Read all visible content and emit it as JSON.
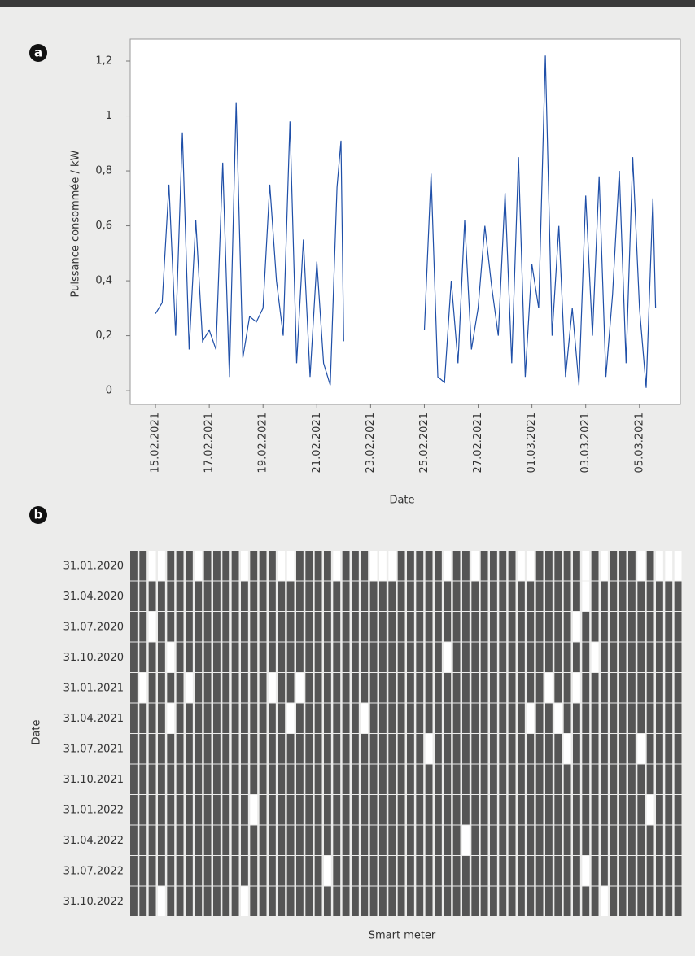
{
  "chart_data": [
    {
      "type": "line",
      "panel": "a",
      "xlabel": "Date",
      "ylabel": "Puissance consommée / kW",
      "color": "#1f4fa8",
      "x": [
        0,
        0.25,
        0.5,
        0.75,
        1,
        1.25,
        1.5,
        1.75,
        2,
        2.25,
        2.5,
        2.75,
        3,
        3.25,
        3.5,
        3.75,
        4,
        4.25,
        4.5,
        4.75,
        5,
        5.25,
        5.5,
        5.75,
        6,
        6.25,
        6.5,
        6.75,
        6.9,
        7.0,
        8.5,
        10,
        10.25,
        10.5,
        10.75,
        11,
        11.25,
        11.5,
        11.75,
        12,
        12.25,
        12.5,
        12.75,
        13,
        13.25,
        13.5,
        13.75,
        14,
        14.25,
        14.5,
        14.75,
        15,
        15.25,
        15.5,
        15.75,
        16,
        16.25,
        16.5,
        16.75,
        17,
        17.25,
        17.5,
        17.75,
        18,
        18.25,
        18.5,
        18.6
      ],
      "values": [
        0.28,
        0.32,
        0.75,
        0.2,
        0.94,
        0.15,
        0.62,
        0.18,
        0.22,
        0.15,
        0.83,
        0.05,
        1.05,
        0.12,
        0.27,
        0.25,
        0.3,
        0.75,
        0.4,
        0.2,
        0.98,
        0.1,
        0.55,
        0.05,
        0.47,
        0.1,
        0.02,
        0.74,
        0.91,
        0.18,
        null,
        0.22,
        0.79,
        0.05,
        0.03,
        0.4,
        0.1,
        0.62,
        0.15,
        0.3,
        0.6,
        0.38,
        0.2,
        0.72,
        0.1,
        0.85,
        0.05,
        0.46,
        0.3,
        1.22,
        0.2,
        0.6,
        0.05,
        0.3,
        0.02,
        0.71,
        0.2,
        0.78,
        0.05,
        0.35,
        0.8,
        0.1,
        0.85,
        0.3,
        0.01,
        0.7,
        0.3
      ],
      "xlim": [
        -0.94,
        19.52
      ],
      "ylim": [
        -0.05,
        1.28
      ],
      "xticks": [
        {
          "value": 0,
          "label": "15.02.2021"
        },
        {
          "value": 2,
          "label": "17.02.2021"
        },
        {
          "value": 4,
          "label": "19.02.2021"
        },
        {
          "value": 6,
          "label": "21.02.2021"
        },
        {
          "value": 8,
          "label": "23.02.2021"
        },
        {
          "value": 10,
          "label": "25.02.2021"
        },
        {
          "value": 12,
          "label": "27.02.2021"
        },
        {
          "value": 14,
          "label": "01.03.2021"
        },
        {
          "value": 16,
          "label": "03.03.2021"
        },
        {
          "value": 18,
          "label": "05.03.2021"
        }
      ],
      "yticks": [
        0,
        {
          "value": 0.2,
          "label": "0,2"
        },
        {
          "value": 0.4,
          "label": "0,4"
        },
        {
          "value": 0.6,
          "label": "0,6"
        },
        {
          "value": 0.8,
          "label": "0,8"
        },
        1,
        {
          "value": 1.2,
          "label": "1,2"
        }
      ]
    },
    {
      "type": "heatmap",
      "panel": "b",
      "xlabel": "Smart meter",
      "ylabel": "Date",
      "color": "#555555",
      "categories": [
        "31.01.2020",
        "31.04.2020",
        "31.07.2020",
        "31.10.2020",
        "31.01.2021",
        "31.04.2021",
        "31.07.2021",
        "31.10.2021",
        "31.01.2022",
        "31.04.2022",
        "31.07.2022",
        "31.10.2022"
      ],
      "z": [
        [
          1,
          1,
          0,
          0,
          1,
          1,
          1,
          0,
          1,
          1,
          1,
          1,
          0,
          1,
          1,
          1,
          0,
          0,
          1,
          1,
          1,
          1,
          0,
          1,
          1,
          1,
          0,
          0,
          0,
          1,
          1,
          1,
          1,
          1,
          0,
          1,
          1,
          0,
          1,
          1,
          1,
          1,
          0,
          0,
          1,
          1,
          1,
          1,
          1,
          0,
          1,
          0,
          1,
          1,
          1,
          0,
          1,
          0,
          0,
          0
        ],
        [
          1,
          1,
          1,
          1,
          1,
          1,
          1,
          1,
          1,
          1,
          1,
          1,
          1,
          1,
          1,
          1,
          1,
          1,
          1,
          1,
          1,
          1,
          1,
          1,
          1,
          1,
          1,
          1,
          1,
          1,
          1,
          1,
          1,
          1,
          1,
          1,
          1,
          1,
          1,
          1,
          1,
          1,
          1,
          1,
          1,
          1,
          1,
          1,
          1,
          0,
          1,
          1,
          1,
          1,
          1,
          1,
          1,
          1,
          1,
          1
        ],
        [
          1,
          1,
          0,
          1,
          1,
          1,
          1,
          1,
          1,
          1,
          1,
          1,
          1,
          1,
          1,
          1,
          1,
          1,
          1,
          1,
          1,
          1,
          1,
          1,
          1,
          1,
          1,
          1,
          1,
          1,
          1,
          1,
          1,
          1,
          1,
          1,
          1,
          1,
          1,
          1,
          1,
          1,
          1,
          1,
          1,
          1,
          1,
          1,
          0,
          1,
          1,
          1,
          1,
          1,
          1,
          1,
          1,
          1,
          1,
          1
        ],
        [
          1,
          1,
          1,
          1,
          0,
          1,
          1,
          1,
          1,
          1,
          1,
          1,
          1,
          1,
          1,
          1,
          1,
          1,
          1,
          1,
          1,
          1,
          1,
          1,
          1,
          1,
          1,
          1,
          1,
          1,
          1,
          1,
          1,
          1,
          0,
          1,
          1,
          1,
          1,
          1,
          1,
          1,
          1,
          1,
          1,
          1,
          1,
          1,
          1,
          1,
          0,
          1,
          1,
          1,
          1,
          1,
          1,
          1,
          1,
          1
        ],
        [
          1,
          0,
          1,
          1,
          1,
          1,
          0,
          1,
          1,
          1,
          1,
          1,
          1,
          1,
          1,
          0,
          1,
          1,
          0,
          1,
          1,
          1,
          1,
          1,
          1,
          1,
          1,
          1,
          1,
          1,
          1,
          1,
          1,
          1,
          1,
          1,
          1,
          1,
          1,
          1,
          1,
          1,
          1,
          1,
          1,
          0,
          1,
          1,
          0,
          1,
          1,
          1,
          1,
          1,
          1,
          1,
          1,
          1,
          1,
          1
        ],
        [
          1,
          1,
          1,
          1,
          0,
          1,
          1,
          1,
          1,
          1,
          1,
          1,
          1,
          1,
          1,
          1,
          1,
          0,
          1,
          1,
          1,
          1,
          1,
          1,
          1,
          0,
          1,
          1,
          1,
          1,
          1,
          1,
          1,
          1,
          1,
          1,
          1,
          1,
          1,
          1,
          1,
          1,
          1,
          0,
          1,
          1,
          0,
          1,
          1,
          1,
          1,
          1,
          1,
          1,
          1,
          1,
          1,
          1,
          1,
          1
        ],
        [
          1,
          1,
          1,
          1,
          1,
          1,
          1,
          1,
          1,
          1,
          1,
          1,
          1,
          1,
          1,
          1,
          1,
          1,
          1,
          1,
          1,
          1,
          1,
          1,
          1,
          1,
          1,
          1,
          1,
          1,
          1,
          1,
          0,
          1,
          1,
          1,
          1,
          1,
          1,
          1,
          1,
          1,
          1,
          1,
          1,
          1,
          1,
          0,
          1,
          1,
          1,
          1,
          1,
          1,
          1,
          0,
          1,
          1,
          1,
          1
        ],
        [
          1,
          1,
          1,
          1,
          1,
          1,
          1,
          1,
          1,
          1,
          1,
          1,
          1,
          1,
          1,
          1,
          1,
          1,
          1,
          1,
          1,
          1,
          1,
          1,
          1,
          1,
          1,
          1,
          1,
          1,
          1,
          1,
          1,
          1,
          1,
          1,
          1,
          1,
          1,
          1,
          1,
          1,
          1,
          1,
          1,
          1,
          1,
          1,
          1,
          1,
          1,
          1,
          1,
          1,
          1,
          1,
          1,
          1,
          1,
          1
        ],
        [
          1,
          1,
          1,
          1,
          1,
          1,
          1,
          1,
          1,
          1,
          1,
          1,
          1,
          0,
          1,
          1,
          1,
          1,
          1,
          1,
          1,
          1,
          1,
          1,
          1,
          1,
          1,
          1,
          1,
          1,
          1,
          1,
          1,
          1,
          1,
          1,
          1,
          1,
          1,
          1,
          1,
          1,
          1,
          1,
          1,
          1,
          1,
          1,
          1,
          1,
          1,
          1,
          1,
          1,
          1,
          1,
          0,
          1,
          1,
          1
        ],
        [
          1,
          1,
          1,
          1,
          1,
          1,
          1,
          1,
          1,
          1,
          1,
          1,
          1,
          1,
          1,
          1,
          1,
          1,
          1,
          1,
          1,
          1,
          1,
          1,
          1,
          1,
          1,
          1,
          1,
          1,
          1,
          1,
          1,
          1,
          1,
          1,
          0,
          1,
          1,
          1,
          1,
          1,
          1,
          1,
          1,
          1,
          1,
          1,
          1,
          1,
          1,
          1,
          1,
          1,
          1,
          1,
          1,
          1,
          1,
          1
        ],
        [
          1,
          1,
          1,
          1,
          1,
          1,
          1,
          1,
          1,
          1,
          1,
          1,
          1,
          1,
          1,
          1,
          1,
          1,
          1,
          1,
          1,
          0,
          1,
          1,
          1,
          1,
          1,
          1,
          1,
          1,
          1,
          1,
          1,
          1,
          1,
          1,
          1,
          1,
          1,
          1,
          1,
          1,
          1,
          1,
          1,
          1,
          1,
          1,
          1,
          0,
          1,
          1,
          1,
          1,
          1,
          1,
          1,
          1,
          1,
          1
        ],
        [
          1,
          1,
          1,
          0,
          1,
          1,
          1,
          1,
          1,
          1,
          1,
          1,
          0,
          1,
          1,
          1,
          1,
          1,
          1,
          1,
          1,
          1,
          1,
          1,
          1,
          1,
          1,
          1,
          1,
          1,
          1,
          1,
          1,
          1,
          1,
          1,
          1,
          1,
          1,
          1,
          1,
          1,
          1,
          1,
          1,
          1,
          1,
          1,
          1,
          1,
          1,
          0,
          1,
          1,
          1,
          1,
          1,
          1,
          1,
          1
        ]
      ]
    }
  ]
}
